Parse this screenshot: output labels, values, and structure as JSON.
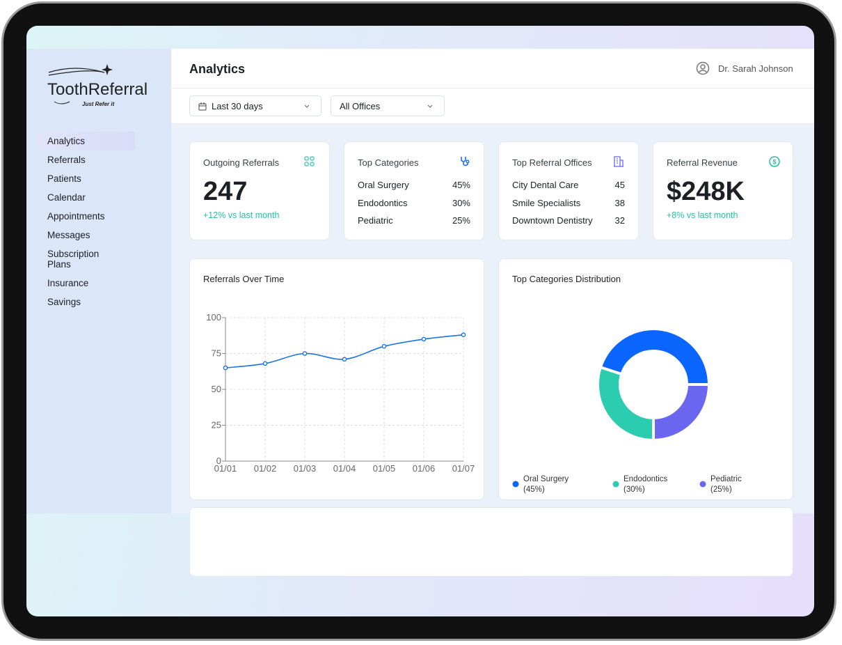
{
  "brand": {
    "name": "ToothReferral",
    "tagline": "Just Refer it"
  },
  "nav": [
    "Analytics",
    "Referrals",
    "Patients",
    "Calendar",
    "Appointments",
    "Messages",
    "Subscription Plans",
    "Insurance",
    "Savings"
  ],
  "header": {
    "title": "Analytics",
    "user": "Dr. Sarah Johnson"
  },
  "filters": [
    "Last 30 days",
    "All Offices"
  ],
  "stat_cards": [
    {
      "title": "Outgoing Referrals",
      "value": 247,
      "change": "+12% vs last month"
    },
    {
      "title": "Referral Revenue",
      "value": "$248K",
      "change": "+8% vs last month"
    }
  ],
  "list_cards": [
    {
      "title": "Top Categories",
      "rows": [
        [
          "Oral Surgery",
          "45%"
        ],
        [
          "Endodontics",
          "30%"
        ],
        [
          "Pediatric",
          "25%"
        ]
      ]
    },
    {
      "title": "Top Referral Offices",
      "rows": [
        [
          "City Dental Care",
          45
        ],
        [
          "Smile Specialists",
          38
        ],
        [
          "Downtown Dentistry",
          32
        ]
      ]
    }
  ],
  "chart_data": [
    {
      "type": "line",
      "title": "Referrals Over Time",
      "categories": [
        "01/01",
        "01/02",
        "01/03",
        "01/04",
        "01/05",
        "01/06",
        "01/07"
      ],
      "values": [
        65,
        68,
        75,
        71,
        80,
        85,
        88
      ],
      "color": "#1a73e8",
      "ylim": [
        0,
        100
      ],
      "yticks": [
        0,
        25,
        50,
        75,
        100
      ],
      "grid": true
    },
    {
      "type": "pie",
      "title": "Top Categories Distribution",
      "categories": [
        "Oral Surgery",
        "Endodontics",
        "Pediatric"
      ],
      "values": [
        45,
        30,
        25
      ],
      "value_labels": [
        "(45%)",
        "(30%)",
        "(25%)"
      ],
      "colors": [
        "#0a66ff",
        "#2bccb0",
        "#6b66f0"
      ]
    }
  ]
}
